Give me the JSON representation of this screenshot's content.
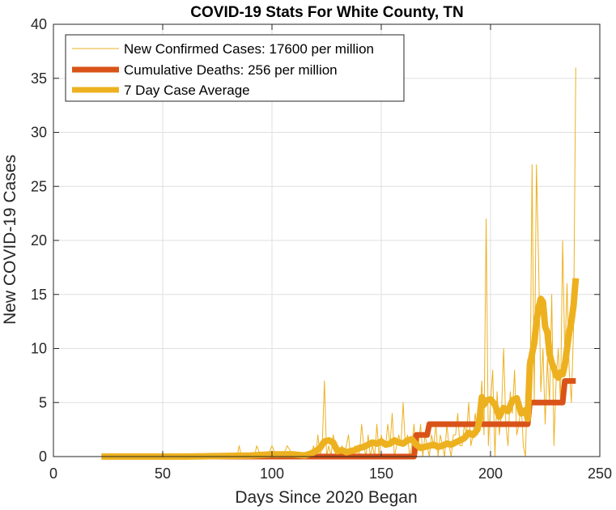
{
  "chart_data": {
    "type": "line",
    "title": "COVID-19 Stats For White County, TN",
    "xlabel": "Days Since 2020 Began",
    "ylabel": "New COVID-19 Cases",
    "xlim": [
      0,
      250
    ],
    "ylim": [
      0,
      40
    ],
    "xticks": [
      "0",
      "50",
      "100",
      "150",
      "200",
      "250"
    ],
    "yticks": [
      "0",
      "5",
      "10",
      "15",
      "20",
      "25",
      "30",
      "35",
      "40"
    ],
    "grid": true,
    "legend_position": "top-left",
    "series": [
      {
        "name": "New Confirmed Cases: 17600 per million",
        "color": "#EDB120",
        "style": "thin",
        "x": [
          22,
          40,
          60,
          84,
          85,
          86,
          88,
          90,
          92,
          93,
          95,
          98,
          100,
          102,
          104,
          105,
          107,
          110,
          112,
          115,
          118,
          119,
          120,
          121,
          122,
          123,
          124,
          125,
          126,
          127,
          128,
          130,
          131,
          132,
          133,
          135,
          136,
          138,
          140,
          141,
          142,
          143,
          144,
          145,
          146,
          147,
          148,
          149,
          150,
          151,
          152,
          153,
          154,
          155,
          156,
          157,
          158,
          159,
          160,
          161,
          162,
          163,
          164,
          165,
          166,
          167,
          168,
          169,
          170,
          171,
          172,
          173,
          174,
          175,
          176,
          177,
          178,
          179,
          180,
          181,
          182,
          183,
          184,
          185,
          186,
          187,
          188,
          189,
          190,
          191,
          192,
          193,
          194,
          195,
          196,
          197,
          198,
          199,
          200,
          201,
          202,
          203,
          204,
          205,
          206,
          207,
          208,
          209,
          210,
          211,
          212,
          213,
          214,
          215,
          216,
          217,
          218,
          219,
          220,
          221,
          222,
          223,
          224,
          225,
          226,
          227,
          228,
          229,
          230,
          231,
          232,
          233,
          234,
          235,
          236,
          237,
          238,
          239
        ],
        "y": [
          0,
          0,
          0,
          0,
          1,
          0,
          0,
          0,
          0,
          1,
          0,
          0,
          1,
          0,
          0,
          0,
          1,
          0,
          0,
          0,
          0,
          1,
          0,
          2,
          0,
          1,
          7,
          0,
          1,
          0,
          2,
          0,
          0,
          1,
          0,
          2,
          0,
          1,
          0,
          3,
          1,
          0,
          2,
          0,
          1,
          0,
          3,
          0,
          2,
          1,
          1,
          3,
          1,
          4,
          0,
          1,
          2,
          1,
          5,
          1,
          2,
          0,
          1,
          3,
          0,
          1,
          3,
          0,
          2,
          1,
          0,
          2,
          1,
          3,
          0,
          2,
          1,
          0,
          3,
          1,
          0,
          2,
          2,
          4,
          1,
          1,
          3,
          2,
          5,
          1,
          2,
          4,
          2,
          3,
          7,
          2,
          22,
          1,
          5,
          8,
          0,
          6,
          2,
          4,
          10,
          3,
          1,
          6,
          4,
          8,
          2,
          3,
          5,
          1,
          0,
          9,
          3,
          27,
          5,
          27,
          18,
          6,
          10,
          3,
          9,
          5,
          15,
          1,
          7,
          10,
          5,
          20,
          9,
          16,
          8,
          5,
          12,
          36
        ]
      },
      {
        "name": "Cumulative Deaths: 256 per million",
        "color": "#D95319",
        "style": "medium",
        "x": [
          22,
          165,
          166,
          171,
          172,
          217,
          218,
          233,
          234,
          239
        ],
        "y": [
          0,
          0,
          2,
          2,
          3,
          3,
          5,
          5,
          7,
          7
        ]
      },
      {
        "name": "7 Day Case Average",
        "color": "#EDB120",
        "style": "thick",
        "x": [
          22,
          60,
          90,
          100,
          110,
          115,
          118,
          120,
          122,
          124,
          126,
          128,
          130,
          132,
          134,
          136,
          138,
          140,
          142,
          144,
          146,
          148,
          150,
          152,
          154,
          156,
          158,
          160,
          162,
          164,
          166,
          168,
          170,
          172,
          174,
          176,
          178,
          180,
          182,
          184,
          186,
          188,
          190,
          192,
          194,
          195,
          196,
          197,
          198,
          200,
          202,
          204,
          206,
          208,
          210,
          212,
          214,
          216,
          217,
          218,
          219,
          220,
          221,
          222,
          223,
          224,
          225,
          226,
          227,
          228,
          229,
          230,
          231,
          232,
          233,
          234,
          235,
          236,
          237,
          238,
          239
        ],
        "y": [
          0,
          0,
          0.1,
          0.2,
          0.2,
          0.1,
          0.3,
          0.5,
          0.8,
          1.4,
          1.5,
          1.3,
          0.5,
          0.6,
          0.4,
          0.5,
          0.6,
          0.8,
          0.9,
          1.1,
          1.3,
          1.2,
          1.4,
          1.1,
          1.2,
          1.5,
          1.3,
          1.2,
          1.5,
          1.6,
          1.1,
          0.8,
          0.9,
          1.0,
          1.1,
          0.9,
          1.0,
          1.2,
          1.1,
          1.3,
          1.5,
          1.7,
          2.2,
          2.0,
          2.5,
          3.5,
          5.5,
          4.8,
          5.2,
          5.3,
          4.8,
          3.7,
          4.5,
          4.2,
          5.2,
          5.4,
          4.0,
          4.3,
          3.5,
          8.5,
          9.5,
          10.5,
          12.5,
          13.8,
          14.6,
          14.3,
          12.0,
          11.5,
          9.5,
          8.7,
          8.2,
          7.5,
          7.3,
          7.8,
          7.6,
          8.5,
          10.0,
          11.5,
          12.5,
          14.0,
          16.5
        ]
      }
    ]
  }
}
